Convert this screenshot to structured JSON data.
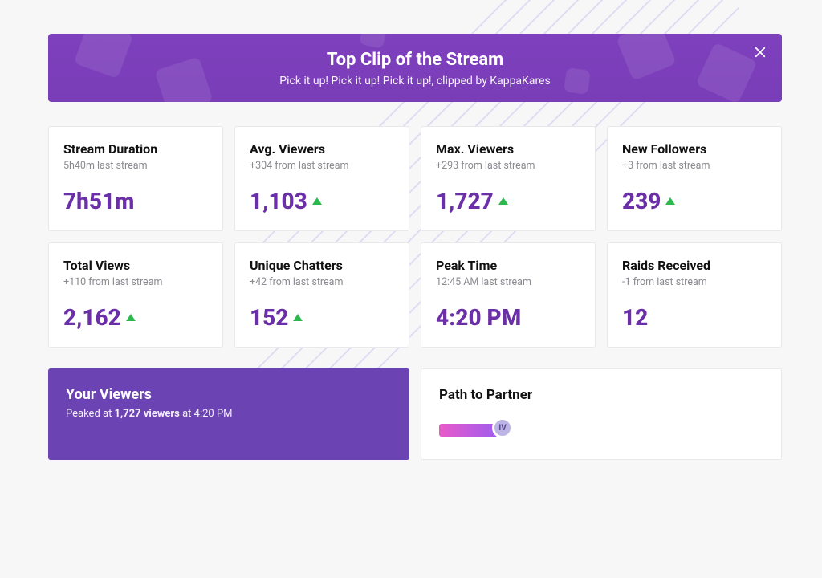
{
  "colors": {
    "accent": "#6b2fa8",
    "banner_bg": "#7a3db8",
    "viewers_panel_bg": "#6b43b3",
    "trend_up": "#2db84d",
    "card_bg": "#ffffff",
    "card_border": "#e8e8ea",
    "page_bg": "#f7f7f8",
    "text_muted": "#8a8a90",
    "stripe": "#b9a6e6"
  },
  "banner": {
    "title": "Top Clip of the Stream",
    "subtitle": "Pick it up! Pick it up! Pick it up!, clipped by KappaKares"
  },
  "stats": [
    {
      "key": "stream-duration",
      "title": "Stream Duration",
      "sub": "5h40m last stream",
      "value": "7h51m",
      "trend": "none"
    },
    {
      "key": "avg-viewers",
      "title": "Avg. Viewers",
      "sub": "+304 from last stream",
      "value": "1,103",
      "trend": "up"
    },
    {
      "key": "max-viewers",
      "title": "Max. Viewers",
      "sub": "+293 from last stream",
      "value": "1,727",
      "trend": "up"
    },
    {
      "key": "new-followers",
      "title": "New Followers",
      "sub": "+3 from last stream",
      "value": "239",
      "trend": "up"
    },
    {
      "key": "total-views",
      "title": "Total Views",
      "sub": "+110 from last stream",
      "value": "2,162",
      "trend": "up"
    },
    {
      "key": "unique-chatters",
      "title": "Unique Chatters",
      "sub": "+42 from last stream",
      "value": "152",
      "trend": "up"
    },
    {
      "key": "peak-time",
      "title": "Peak Time",
      "sub": "12:45 AM last stream",
      "value": "4:20 PM",
      "trend": "none"
    },
    {
      "key": "raids-received",
      "title": "Raids Received",
      "sub": "-1 from last stream",
      "value": "12",
      "trend": "none"
    }
  ],
  "your_viewers": {
    "title": "Your Viewers",
    "sub_prefix": "Peaked at ",
    "peak_viewers": "1,727 viewers",
    "sub_mid": " at ",
    "peak_time": "4:20 PM"
  },
  "path_to_partner": {
    "title": "Path to Partner",
    "level_label": "IV",
    "progress_gradient": [
      "#e85ac9",
      "#9b5cf2"
    ]
  }
}
